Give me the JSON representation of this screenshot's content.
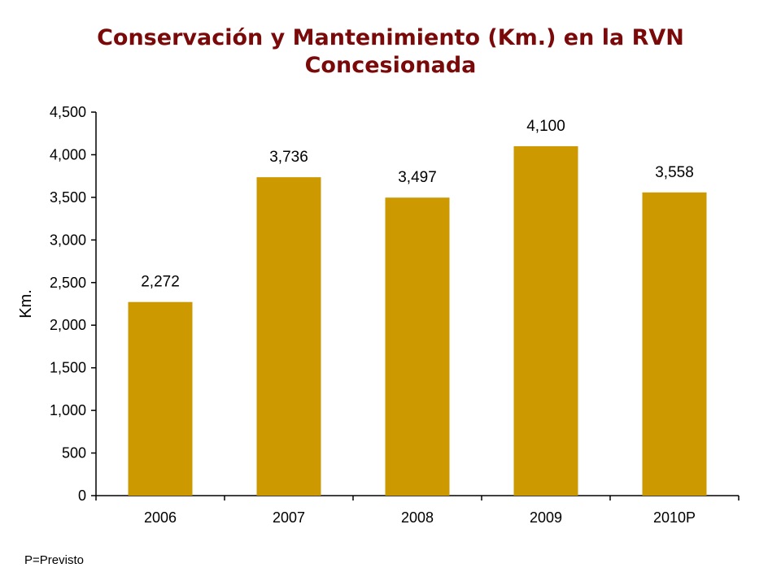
{
  "colors": {
    "title": "#7a0a0a",
    "bar": "#cc9900",
    "axis": "#000000"
  },
  "title_line1": "Conservación y Mantenimiento (Km.) en la RVN",
  "title_line2": "Concesionada",
  "footnote": "P=Previsto",
  "chart_data": {
    "type": "bar",
    "title": "Conservación y Mantenimiento (Km.) en la RVN Concesionada",
    "xlabel": "",
    "ylabel": "Km.",
    "ylim": [
      0,
      4500
    ],
    "yticks": [
      0,
      500,
      1000,
      1500,
      2000,
      2500,
      3000,
      3500,
      4000,
      4500
    ],
    "ytick_labels": [
      "0",
      "500",
      "1,000",
      "1,500",
      "2,000",
      "2,500",
      "3,000",
      "3,500",
      "4,000",
      "4,500"
    ],
    "categories": [
      "2006",
      "2007",
      "2008",
      "2009",
      "2010P"
    ],
    "values": [
      2272,
      3736,
      3497,
      4100,
      3558
    ],
    "data_labels": [
      "2,272",
      "3,736",
      "3,497",
      "4,100",
      "3,558"
    ],
    "grid": false,
    "legend": "none"
  }
}
